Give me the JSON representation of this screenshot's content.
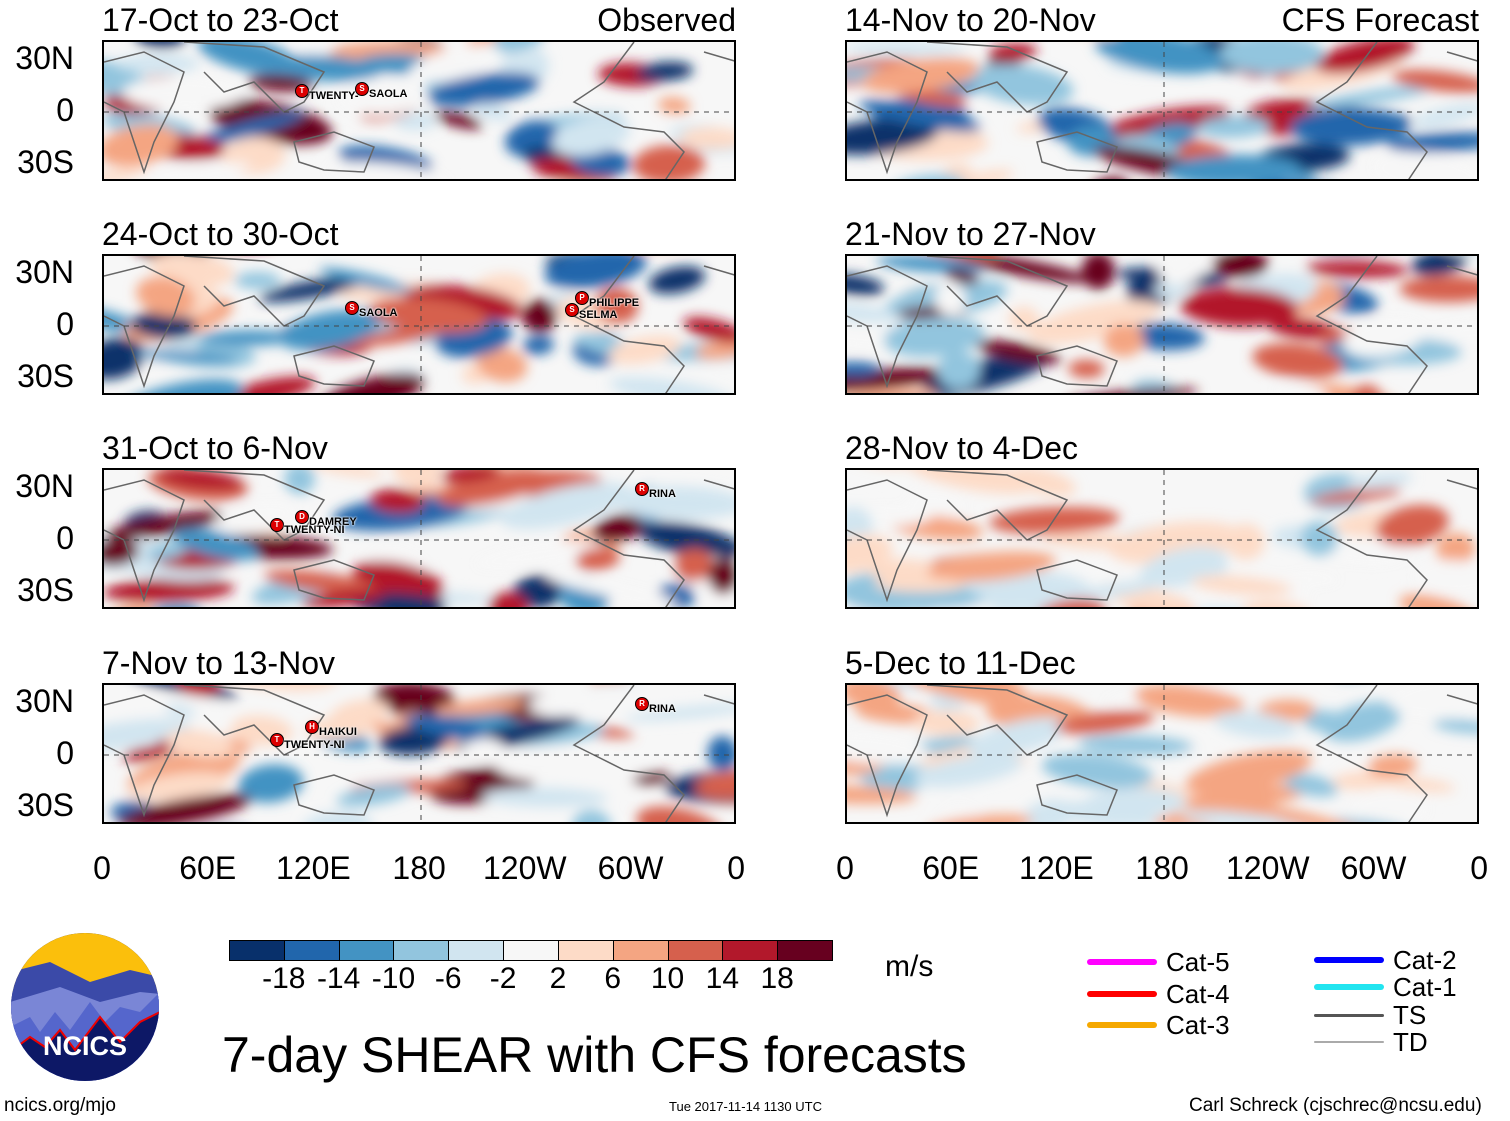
{
  "figure_title": "7-day SHEAR with CFS forecasts",
  "left_header": "Observed",
  "right_header": "CFS Forecast",
  "panels_observed": [
    {
      "title": "17-Oct to 23-Oct",
      "storms": [
        "TWENTY-",
        "SAOLA"
      ]
    },
    {
      "title": "24-Oct to 30-Oct",
      "storms": [
        "SAOLA",
        "PHILIPPE",
        "SELMA"
      ]
    },
    {
      "title": "31-Oct to 6-Nov",
      "storms": [
        "DAMREY",
        "TWENTY-NI",
        "RINA"
      ]
    },
    {
      "title": "7-Nov to 13-Nov",
      "storms": [
        "TWENTY-NI",
        "HAIKUI",
        "RINA"
      ]
    }
  ],
  "panels_forecast": [
    {
      "title": "14-Nov to 20-Nov"
    },
    {
      "title": "21-Nov to 27-Nov"
    },
    {
      "title": "28-Nov to 4-Dec"
    },
    {
      "title": "5-Dec to 11-Dec"
    }
  ],
  "lat_labels": [
    "30N",
    "0",
    "30S"
  ],
  "lon_labels": [
    "0",
    "60E",
    "120E",
    "180",
    "120W",
    "60W",
    "0"
  ],
  "colorbar": {
    "unit": "m/s",
    "labels": [
      "-18",
      "-14",
      "-10",
      "-6",
      "-2",
      "2",
      "6",
      "10",
      "14",
      "18"
    ],
    "colors": [
      "#08306b",
      "#2166ac",
      "#4393c3",
      "#92c5de",
      "#d1e5f0",
      "#f7f7f7",
      "#fddbc7",
      "#f4a582",
      "#d6604d",
      "#b2182b",
      "#67001f"
    ]
  },
  "legend": [
    {
      "label": "Cat-5",
      "color": "#ff00ff"
    },
    {
      "label": "Cat-4",
      "color": "#ff0000"
    },
    {
      "label": "Cat-3",
      "color": "#f5a800"
    },
    {
      "label": "Cat-2",
      "color": "#0000ff"
    },
    {
      "label": "Cat-1",
      "color": "#22e5f0"
    },
    {
      "label": "TS",
      "color": "#555555"
    },
    {
      "label": "TD",
      "color": "#aaaaaa"
    }
  ],
  "logo_text": "NCICS",
  "footer": {
    "site": "ncics.org/mjo",
    "timestamp": "Tue 2017-11-14 1130 UTC",
    "author": "Carl Schreck (cjschrec@ncsu.edu)"
  }
}
